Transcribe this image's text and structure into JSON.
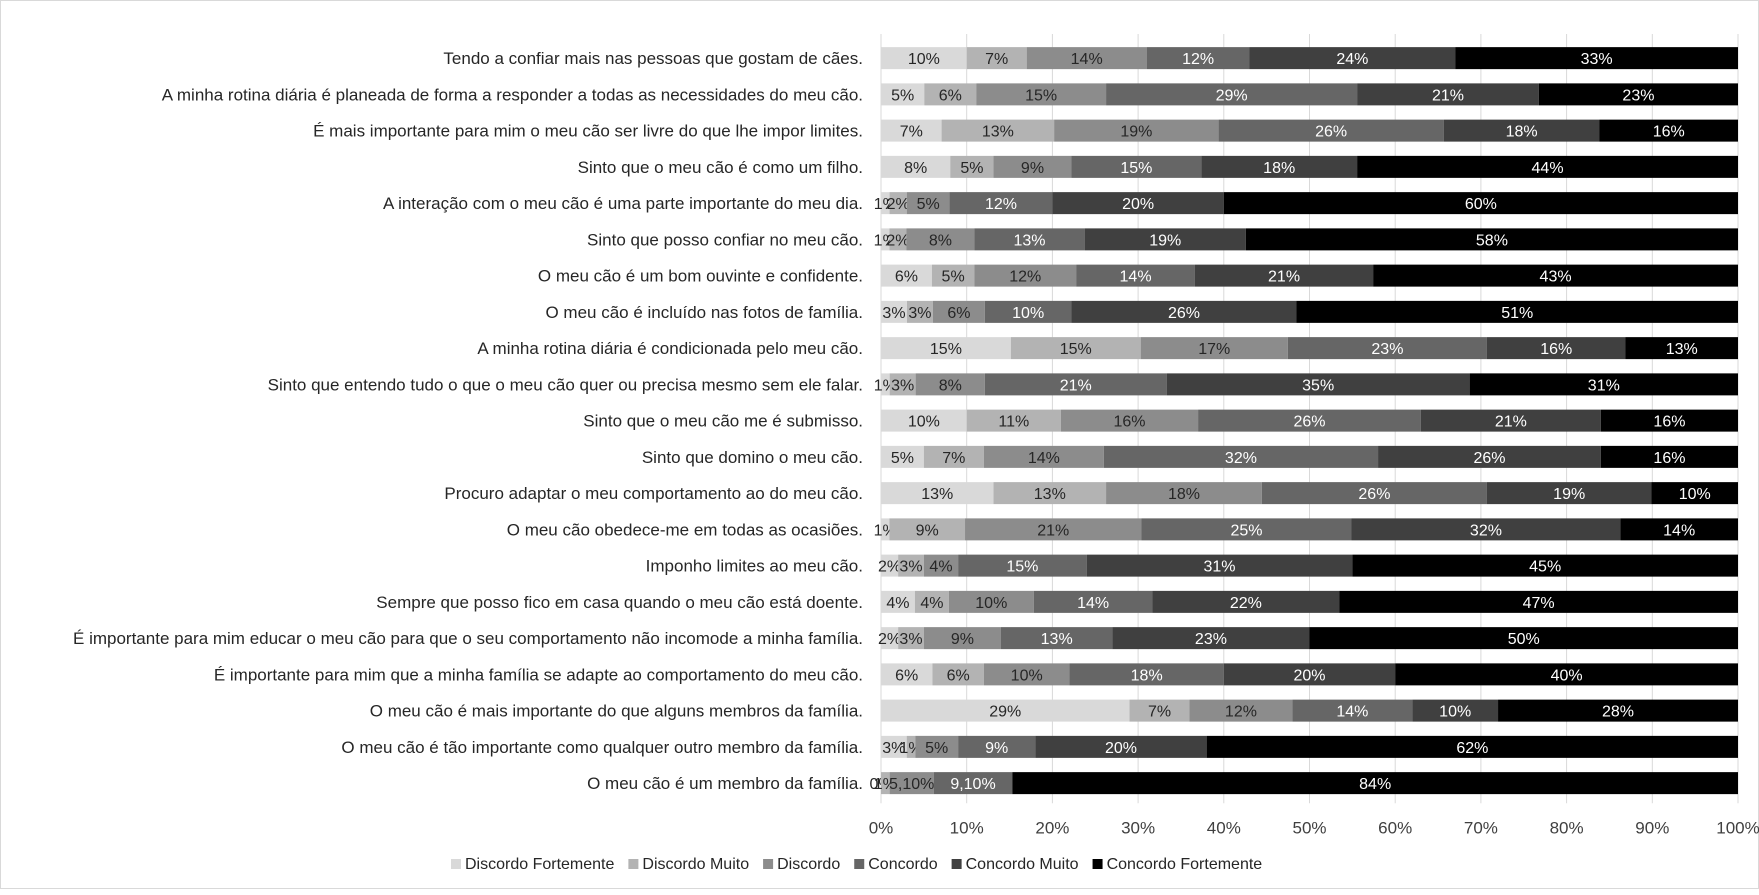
{
  "chart_data": {
    "type": "bar",
    "orientation": "horizontal",
    "stacked": "percent",
    "xlim": [
      0,
      100
    ],
    "x_ticks": [
      "0%",
      "10%",
      "20%",
      "30%",
      "40%",
      "50%",
      "60%",
      "70%",
      "80%",
      "90%",
      "100%"
    ],
    "gridlines": "vertical",
    "legend_position": "bottom",
    "categories": [
      "Tendo a confiar mais nas pessoas que gostam de cães.",
      "A minha rotina diária é planeada de forma a responder a todas as necessidades do meu cão.",
      "É mais importante para mim o meu cão ser livre do que lhe impor limites.",
      "Sinto que o meu cão é como um filho.",
      "A interação com o meu cão é uma parte importante do meu dia.",
      "Sinto que posso confiar no meu cão.",
      "O meu cão é um bom ouvinte e confidente.",
      "O meu cão é incluído nas fotos de família.",
      "A minha rotina diária é condicionada pelo meu cão.",
      "Sinto que entendo tudo o que o meu cão quer ou precisa mesmo sem ele falar.",
      "Sinto que o meu cão me é submisso.",
      "Sinto que domino o meu cão.",
      "Procuro adaptar o meu comportamento ao do meu cão.",
      "O meu cão obedece-me em todas as ocasiões.",
      "Imponho limites ao meu cão.",
      "Sempre que posso fico em casa quando o meu cão está doente.",
      "É importante para mim educar o meu cão para que o seu comportamento não incomode a minha família.",
      "É importante para mim que a minha família se adapte ao comportamento do meu cão.",
      "O meu cão é mais importante do que alguns membros da família.",
      "O meu cão é tão importante como qualquer outro membro da família.",
      "O meu cão é um membro da família."
    ],
    "series": [
      {
        "name": "Discordo Fortemente",
        "color": "#d9d9d9",
        "values": [
          10,
          5,
          7,
          8,
          1,
          1,
          6,
          3,
          15,
          1,
          10,
          5,
          13,
          1,
          2,
          4,
          2,
          6,
          29,
          3,
          0
        ],
        "labels": [
          "10%",
          "5%",
          "7%",
          "8%",
          "1%",
          "1%",
          "6%",
          "3%",
          "15%",
          "1%",
          "10%",
          "5%",
          "13%",
          "1%",
          "2%",
          "4%",
          "2%",
          "6%",
          "29%",
          "3%",
          "0%"
        ]
      },
      {
        "name": "Discordo Muito",
        "color": "#b3b3b3",
        "values": [
          7,
          6,
          13,
          5,
          2,
          2,
          5,
          3,
          15,
          3,
          11,
          7,
          13,
          9,
          3,
          4,
          3,
          6,
          7,
          1,
          1
        ],
        "labels": [
          "7%",
          "6%",
          "13%",
          "5%",
          "2%",
          "2%",
          "5%",
          "3%",
          "15%",
          "3%",
          "11%",
          "7%",
          "13%",
          "9%",
          "3%",
          "4%",
          "3%",
          "6%",
          "7%",
          "1%",
          "1%"
        ]
      },
      {
        "name": "Discordo",
        "color": "#8c8c8c",
        "values": [
          14,
          15,
          19,
          9,
          5,
          8,
          12,
          6,
          17,
          8,
          16,
          14,
          18,
          21,
          4,
          10,
          9,
          10,
          12,
          5,
          5.1
        ],
        "labels": [
          "14%",
          "15%",
          "19%",
          "9%",
          "5%",
          "8%",
          "12%",
          "6%",
          "17%",
          "8%",
          "16%",
          "14%",
          "18%",
          "21%",
          "4%",
          "10%",
          "9%",
          "10%",
          "12%",
          "5%",
          "5,10%"
        ]
      },
      {
        "name": "Concordo",
        "color": "#666666",
        "values": [
          12,
          29,
          26,
          15,
          12,
          13,
          14,
          10,
          23,
          21,
          26,
          32,
          26,
          25,
          15,
          14,
          13,
          18,
          14,
          9,
          9.1
        ],
        "labels": [
          "12%",
          "29%",
          "26%",
          "15%",
          "12%",
          "13%",
          "14%",
          "10%",
          "23%",
          "21%",
          "26%",
          "32%",
          "26%",
          "25%",
          "15%",
          "14%",
          "13%",
          "18%",
          "14%",
          "9%",
          "9,10%"
        ]
      },
      {
        "name": "Concordo Muito",
        "color": "#404040",
        "values": [
          24,
          21,
          18,
          18,
          20,
          19,
          21,
          26,
          16,
          35,
          21,
          26,
          19,
          32,
          31,
          22,
          23,
          20,
          10,
          20,
          0
        ],
        "labels": [
          "24%",
          "21%",
          "18%",
          "18%",
          "20%",
          "19%",
          "21%",
          "26%",
          "16%",
          "35%",
          "21%",
          "26%",
          "19%",
          "32%",
          "31%",
          "22%",
          "23%",
          "20%",
          "10%",
          "20%",
          ""
        ]
      },
      {
        "name": "Concordo Fortemente",
        "color": "#000000",
        "values": [
          33,
          23,
          16,
          44,
          60,
          58,
          43,
          51,
          13,
          31,
          16,
          16,
          10,
          14,
          45,
          47,
          50,
          40,
          28,
          62,
          84
        ],
        "labels": [
          "33%",
          "23%",
          "16%",
          "44%",
          "60%",
          "58%",
          "43%",
          "51%",
          "13%",
          "31%",
          "16%",
          "16%",
          "10%",
          "14%",
          "45%",
          "47%",
          "50%",
          "40%",
          "28%",
          "62%",
          "84%"
        ]
      }
    ]
  }
}
